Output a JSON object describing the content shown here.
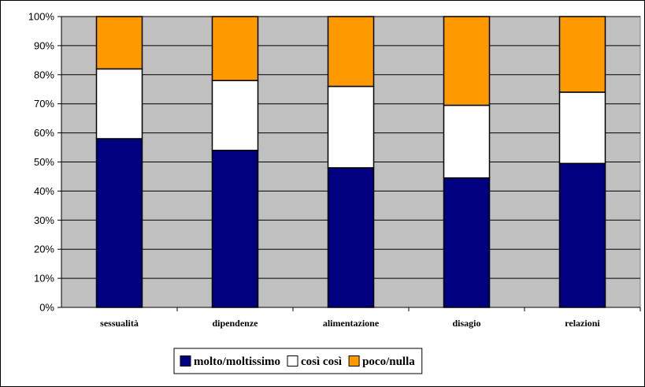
{
  "chart_data": {
    "type": "bar",
    "stacked": true,
    "percent": true,
    "categories": [
      "sessualità",
      "dipendenze",
      "alimentazione",
      "disagio",
      "relazioni"
    ],
    "series": [
      {
        "name": "molto/moltissimo",
        "color": "#000080",
        "values": [
          58,
          54,
          48,
          44.5,
          49.5
        ]
      },
      {
        "name": "così così",
        "color": "#ffffff",
        "values": [
          24,
          24,
          28,
          25,
          24.5
        ]
      },
      {
        "name": "poco/nulla",
        "color": "#ff9900",
        "values": [
          18,
          22,
          24,
          30.5,
          26
        ]
      }
    ],
    "ylim": [
      0,
      100
    ],
    "yticks": [
      "0%",
      "10%",
      "20%",
      "30%",
      "40%",
      "50%",
      "60%",
      "70%",
      "80%",
      "90%",
      "100%"
    ],
    "grid": true,
    "plot_background": "#c0c0c0",
    "legend_position": "bottom"
  }
}
